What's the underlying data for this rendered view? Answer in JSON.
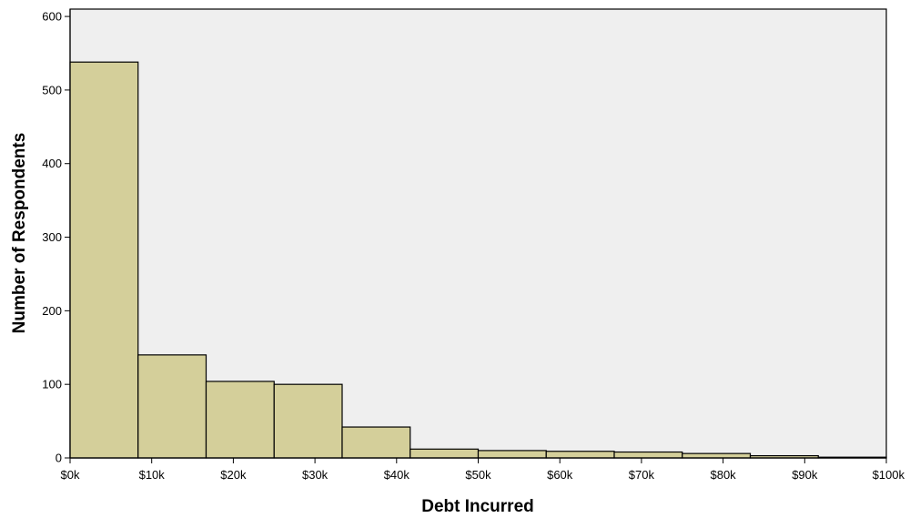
{
  "chart_data": {
    "type": "bar",
    "subtype": "histogram",
    "title": "",
    "xlabel": "Debt Incurred",
    "ylabel": "Number of Respondents",
    "xlim": [
      0,
      100000
    ],
    "ylim": [
      0,
      610
    ],
    "x_ticks": [
      {
        "value": 0,
        "label": "$0k"
      },
      {
        "value": 10000,
        "label": "$10k"
      },
      {
        "value": 20000,
        "label": "$20k"
      },
      {
        "value": 30000,
        "label": "$30k"
      },
      {
        "value": 40000,
        "label": "$40k"
      },
      {
        "value": 50000,
        "label": "$50k"
      },
      {
        "value": 60000,
        "label": "$60k"
      },
      {
        "value": 70000,
        "label": "$70k"
      },
      {
        "value": 80000,
        "label": "$80k"
      },
      {
        "value": 90000,
        "label": "$90k"
      },
      {
        "value": 100000,
        "label": "$100k"
      }
    ],
    "y_ticks": [
      {
        "value": 0,
        "label": "0"
      },
      {
        "value": 100,
        "label": "100"
      },
      {
        "value": 200,
        "label": "200"
      },
      {
        "value": 300,
        "label": "300"
      },
      {
        "value": 400,
        "label": "400"
      },
      {
        "value": 500,
        "label": "500"
      },
      {
        "value": 600,
        "label": "600"
      }
    ],
    "bins": [
      {
        "start": 0,
        "end": 8333,
        "count": 538
      },
      {
        "start": 8333,
        "end": 16667,
        "count": 140
      },
      {
        "start": 16667,
        "end": 25000,
        "count": 104
      },
      {
        "start": 25000,
        "end": 33333,
        "count": 100
      },
      {
        "start": 33333,
        "end": 41667,
        "count": 42
      },
      {
        "start": 41667,
        "end": 50000,
        "count": 12
      },
      {
        "start": 50000,
        "end": 58333,
        "count": 10
      },
      {
        "start": 58333,
        "end": 66667,
        "count": 9
      },
      {
        "start": 66667,
        "end": 75000,
        "count": 8
      },
      {
        "start": 75000,
        "end": 83333,
        "count": 6
      },
      {
        "start": 83333,
        "end": 91667,
        "count": 3
      },
      {
        "start": 91667,
        "end": 100000,
        "count": 1
      }
    ],
    "grid": false,
    "legend": "none",
    "colors": {
      "bar_fill": "#d4cf9a",
      "bar_stroke": "#000000",
      "plot_background": "#efefef",
      "page_background": "#ffffff"
    }
  }
}
